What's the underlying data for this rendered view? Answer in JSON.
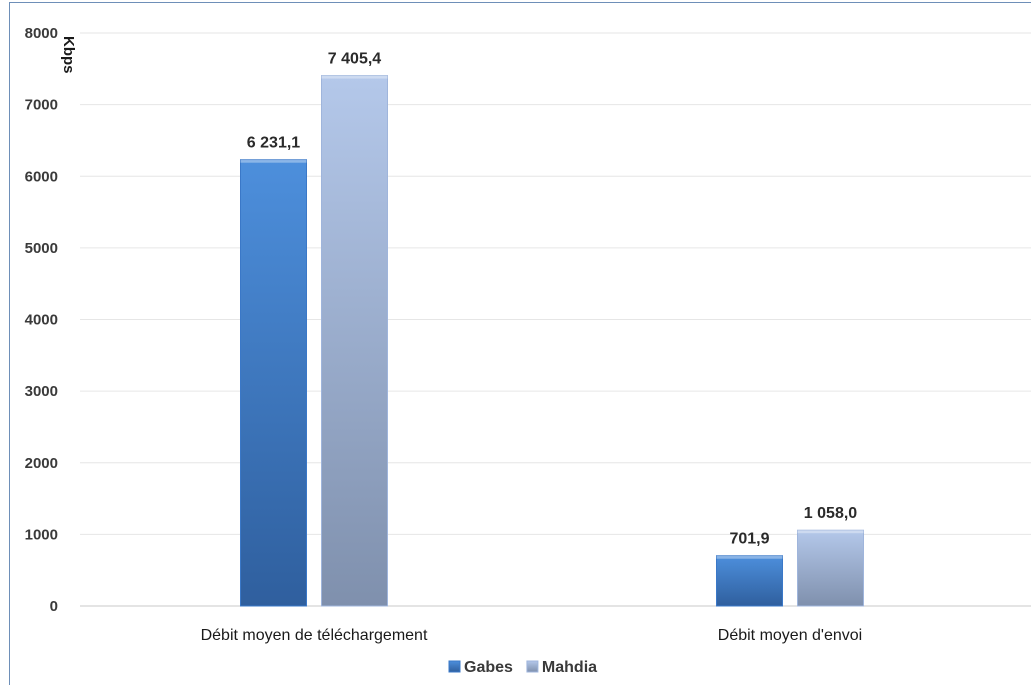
{
  "chart_data": {
    "type": "bar",
    "unit_label": "Kbps",
    "categories": [
      "Débit moyen de téléchargement",
      "Débit moyen d'envoi"
    ],
    "series": [
      {
        "name": "Gabes",
        "values": [
          6231.1,
          701.9
        ],
        "labels": [
          "6 231,1",
          "701,9"
        ],
        "color": "#3a78c8"
      },
      {
        "name": "Mahdia",
        "values": [
          7405.4,
          1058.0
        ],
        "labels": [
          "7 405,4",
          "1 058,0"
        ],
        "color": "#9fb5dc"
      }
    ],
    "ylim": [
      0,
      8000
    ],
    "y_ticks": [
      0,
      1000,
      2000,
      3000,
      4000,
      5000,
      6000,
      7000,
      8000
    ],
    "grid": true,
    "legend_position": "bottom-center"
  }
}
